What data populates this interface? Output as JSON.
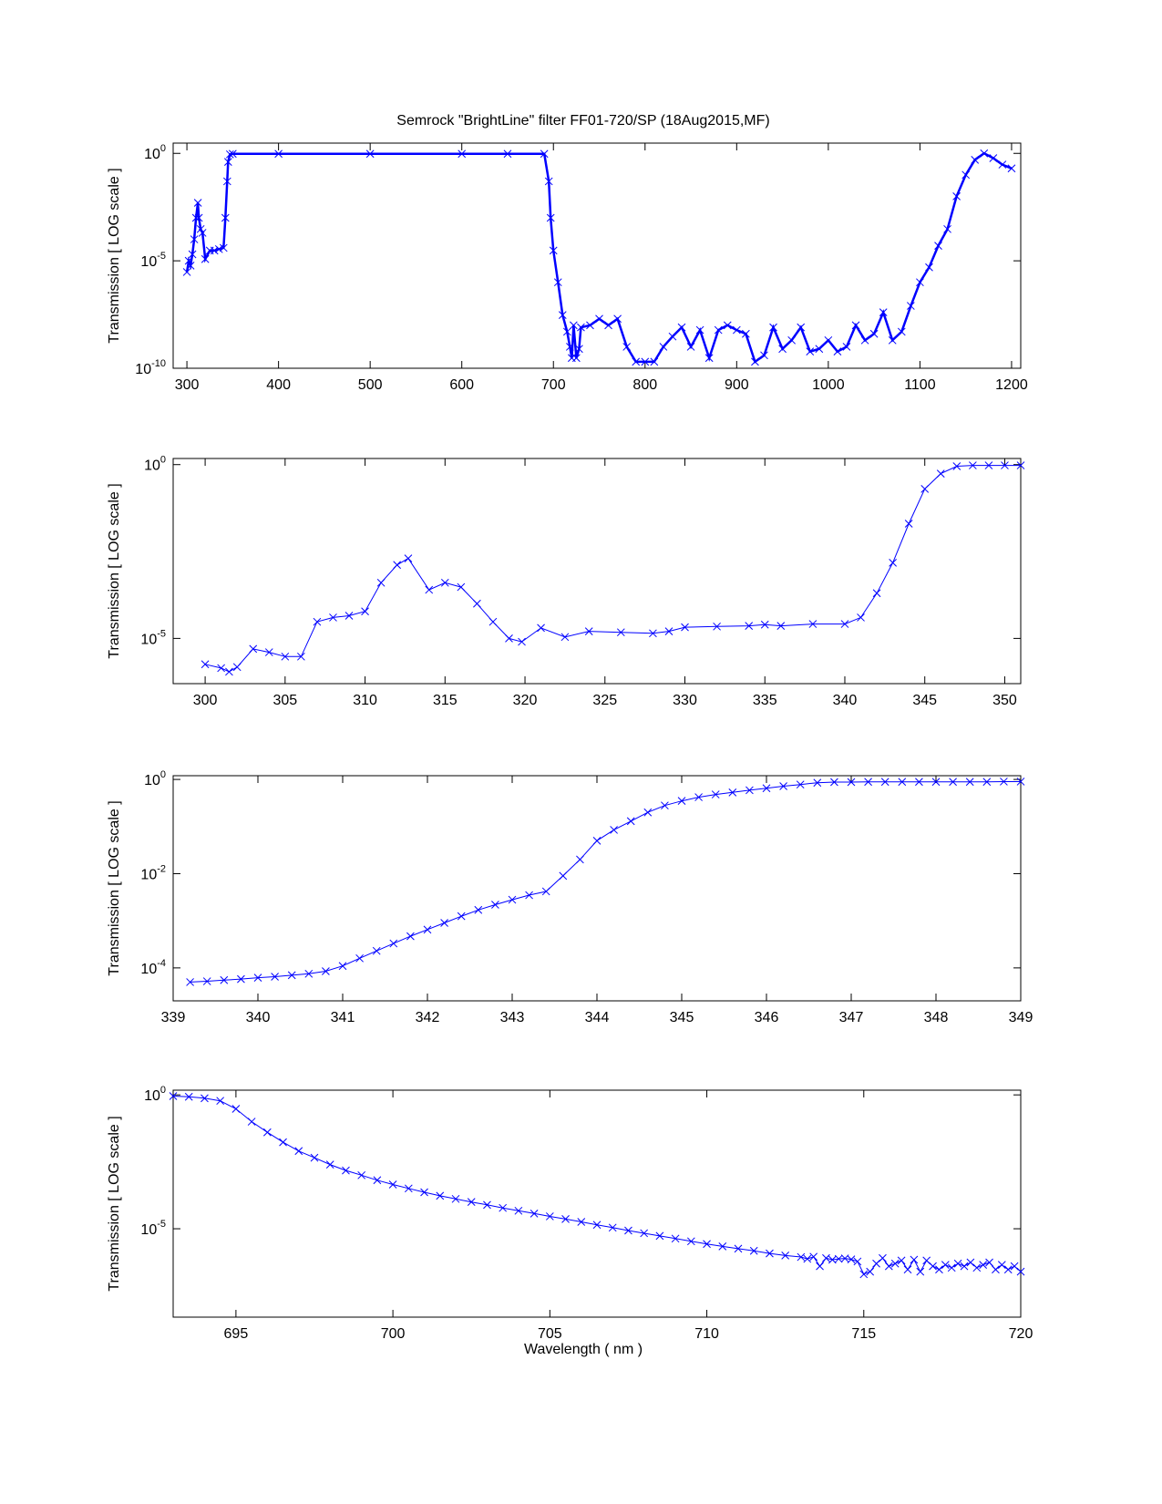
{
  "figure": {
    "title": "Semrock \"BrightLine\" filter  FF01-720/SP  (18Aug2015,MF)",
    "xlabel": "Wavelength  ( nm )",
    "line_color": "#0000ff"
  },
  "chart_data": [
    {
      "type": "line",
      "marker": "x",
      "ylabel": "Transmission  [ LOG scale ]",
      "yscale": "log",
      "xlim": [
        285,
        1210
      ],
      "ylim": [
        1e-10,
        3
      ],
      "xticks": [
        300,
        400,
        500,
        600,
        700,
        800,
        900,
        1000,
        1100,
        1200
      ],
      "yticks": [
        {
          "value": 1e-10,
          "base": "10",
          "exp": "-10"
        },
        {
          "value": 1e-05,
          "base": "10",
          "exp": "-5"
        },
        {
          "value": 1,
          "base": "10",
          "exp": "0"
        }
      ],
      "series": [
        {
          "x": [
            300,
            302,
            304,
            306,
            308,
            310,
            312,
            313,
            315,
            317,
            320,
            325,
            330,
            335,
            340,
            342,
            344,
            345,
            347,
            350,
            400,
            500,
            600,
            650,
            690,
            695,
            697,
            700,
            705,
            710,
            715,
            718,
            720,
            722,
            725,
            728,
            730,
            740,
            750,
            760,
            770,
            780,
            790,
            800,
            810,
            820,
            830,
            840,
            850,
            860,
            870,
            880,
            890,
            900,
            910,
            920,
            930,
            940,
            950,
            960,
            970,
            980,
            990,
            1000,
            1010,
            1020,
            1030,
            1040,
            1050,
            1060,
            1070,
            1080,
            1090,
            1100,
            1110,
            1120,
            1130,
            1140,
            1150,
            1160,
            1170,
            1180,
            1190,
            1200
          ],
          "y": [
            3e-06,
            1e-05,
            6e-06,
            2e-05,
            0.0001,
            0.001,
            0.005,
            0.001,
            0.0003,
            0.0002,
            1.2e-05,
            3e-05,
            3e-05,
            3.5e-05,
            4e-05,
            0.001,
            0.05,
            0.4,
            0.9,
            0.95,
            0.95,
            0.95,
            0.95,
            0.95,
            0.95,
            0.05,
            0.001,
            3e-05,
            1e-06,
            3e-08,
            5e-09,
            1e-09,
            3e-10,
            1e-08,
            3e-10,
            8e-10,
            8e-09,
            1e-08,
            2e-08,
            1e-08,
            2e-08,
            1e-09,
            2e-10,
            2e-10,
            2e-10,
            1e-09,
            3e-09,
            8e-09,
            1e-09,
            6e-09,
            3e-10,
            6e-09,
            1e-08,
            6e-09,
            4e-09,
            2e-10,
            4e-10,
            8e-09,
            8e-10,
            2e-09,
            8e-09,
            6e-10,
            8e-10,
            2e-09,
            6e-10,
            1e-09,
            1e-08,
            2e-09,
            4e-09,
            4e-08,
            2e-09,
            5e-09,
            8e-08,
            1e-06,
            5e-06,
            5e-05,
            0.0003,
            0.01,
            0.1,
            0.5,
            1.0,
            0.6,
            0.3,
            0.2
          ]
        }
      ]
    },
    {
      "type": "line",
      "marker": "x",
      "ylabel": "Transmission  [ LOG scale ]",
      "yscale": "log",
      "xlim": [
        298,
        351
      ],
      "ylim": [
        5e-07,
        1.5
      ],
      "xticks": [
        300,
        305,
        310,
        315,
        320,
        325,
        330,
        335,
        340,
        345,
        350
      ],
      "yticks": [
        {
          "value": 1e-05,
          "base": "10",
          "exp": "-5"
        },
        {
          "value": 1,
          "base": "10",
          "exp": "0"
        }
      ],
      "series": [
        {
          "x": [
            300,
            301,
            301.5,
            302,
            303,
            304,
            305,
            306,
            307,
            308,
            309,
            310,
            311,
            312,
            312.7,
            314,
            315,
            316,
            317,
            318,
            319,
            319.8,
            321,
            322.5,
            324,
            326,
            328,
            329,
            330,
            332,
            334,
            335,
            336,
            338,
            340,
            341,
            342,
            343,
            344,
            345,
            346,
            347,
            348,
            349,
            350,
            351
          ],
          "y": [
            1.8e-06,
            1.4e-06,
            1.1e-06,
            1.5e-06,
            5e-06,
            4e-06,
            3e-06,
            3e-06,
            3e-05,
            4e-05,
            4.5e-05,
            6e-05,
            0.0004,
            0.0013,
            0.002,
            0.00025,
            0.0004,
            0.0003,
            0.0001,
            3e-05,
            1e-05,
            8e-06,
            2e-05,
            1.1e-05,
            1.6e-05,
            1.5e-05,
            1.4e-05,
            1.6e-05,
            2.1e-05,
            2.2e-05,
            2.3e-05,
            2.5e-05,
            2.3e-05,
            2.6e-05,
            2.6e-05,
            4e-05,
            0.0002,
            0.0015,
            0.02,
            0.2,
            0.55,
            0.9,
            0.95,
            0.95,
            0.95,
            0.95
          ]
        }
      ]
    },
    {
      "type": "line",
      "marker": "x",
      "ylabel": "Transmission  [ LOG scale ]",
      "yscale": "log",
      "xlim": [
        339,
        349
      ],
      "ylim": [
        2e-05,
        1.2
      ],
      "xticks": [
        339,
        340,
        341,
        342,
        343,
        344,
        345,
        346,
        347,
        348,
        349
      ],
      "yticks": [
        {
          "value": 0.0001,
          "base": "10",
          "exp": "-4"
        },
        {
          "value": 0.01,
          "base": "10",
          "exp": "-2"
        },
        {
          "value": 1,
          "base": "10",
          "exp": "0"
        }
      ],
      "series": [
        {
          "x": [
            339.2,
            339.4,
            339.6,
            339.8,
            340.0,
            340.2,
            340.4,
            340.6,
            340.8,
            341.0,
            341.2,
            341.4,
            341.6,
            341.8,
            342.0,
            342.2,
            342.4,
            342.6,
            342.8,
            343.0,
            343.2,
            343.4,
            343.6,
            343.8,
            344.0,
            344.2,
            344.4,
            344.6,
            344.8,
            345.0,
            345.2,
            345.4,
            345.6,
            345.8,
            346.0,
            346.2,
            346.4,
            346.6,
            346.8,
            347.0,
            347.2,
            347.4,
            347.6,
            347.8,
            348.0,
            348.2,
            348.4,
            348.6,
            348.8,
            349.0
          ],
          "y": [
            5e-05,
            5.2e-05,
            5.5e-05,
            5.8e-05,
            6.2e-05,
            6.5e-05,
            7e-05,
            7.5e-05,
            8.5e-05,
            0.00011,
            0.00016,
            0.00023,
            0.00033,
            0.00047,
            0.00065,
            0.0009,
            0.00125,
            0.0017,
            0.0022,
            0.0028,
            0.0035,
            0.0042,
            0.009,
            0.02,
            0.05,
            0.085,
            0.13,
            0.2,
            0.28,
            0.35,
            0.42,
            0.48,
            0.53,
            0.59,
            0.65,
            0.72,
            0.78,
            0.85,
            0.88,
            0.88,
            0.89,
            0.89,
            0.89,
            0.89,
            0.89,
            0.89,
            0.89,
            0.89,
            0.9,
            0.9
          ]
        }
      ]
    },
    {
      "type": "line",
      "marker": "x",
      "ylabel": "Transmission  [ LOG scale ]",
      "xlabel": "Wavelength  ( nm )",
      "yscale": "log",
      "xlim": [
        693,
        720
      ],
      "ylim": [
        5e-09,
        1.5
      ],
      "xticks": [
        695,
        700,
        705,
        710,
        715,
        720
      ],
      "yticks": [
        {
          "value": 1e-05,
          "base": "10",
          "exp": "-5"
        },
        {
          "value": 1,
          "base": "10",
          "exp": "0"
        }
      ],
      "series": [
        {
          "x": [
            693.0,
            693.5,
            694.0,
            694.5,
            695.0,
            695.5,
            696.0,
            696.5,
            697.0,
            697.5,
            698.0,
            698.5,
            699.0,
            699.5,
            700.0,
            700.5,
            701.0,
            701.5,
            702.0,
            702.5,
            703.0,
            703.5,
            704.0,
            704.5,
            705.0,
            705.5,
            706.0,
            706.5,
            707.0,
            707.5,
            708.0,
            708.5,
            709.0,
            709.5,
            710.0,
            710.5,
            711.0,
            711.5,
            712.0,
            712.5,
            713.0,
            713.2,
            713.4,
            713.6,
            713.8,
            714.0,
            714.2,
            714.4,
            714.6,
            714.8,
            715.0,
            715.2,
            715.4,
            715.6,
            715.8,
            716.0,
            716.2,
            716.4,
            716.6,
            716.8,
            717.0,
            717.2,
            717.4,
            717.6,
            717.8,
            718.0,
            718.2,
            718.4,
            718.6,
            718.8,
            719.0,
            719.2,
            719.4,
            719.6,
            719.8,
            720.0
          ],
          "y": [
            0.9,
            0.85,
            0.75,
            0.6,
            0.3,
            0.1,
            0.04,
            0.017,
            0.008,
            0.0045,
            0.0025,
            0.0015,
            0.001,
            0.00065,
            0.00045,
            0.00032,
            0.00023,
            0.00017,
            0.00013,
            0.0001,
            7.8e-05,
            6e-05,
            4.7e-05,
            3.7e-05,
            2.9e-05,
            2.3e-05,
            1.8e-05,
            1.4e-05,
            1.1e-05,
            8.6e-06,
            6.8e-06,
            5.4e-06,
            4.3e-06,
            3.4e-06,
            2.7e-06,
            2.2e-06,
            1.8e-06,
            1.5e-06,
            1.2e-06,
            1e-06,
            8.8e-07,
            7.5e-07,
            9e-07,
            4e-07,
            8e-07,
            7e-07,
            7.5e-07,
            7.8e-07,
            7.2e-07,
            6e-07,
            2e-07,
            2.5e-07,
            5e-07,
            8e-07,
            4e-07,
            5e-07,
            6.5e-07,
            3e-07,
            7e-07,
            2.5e-07,
            6.5e-07,
            4e-07,
            3e-07,
            4.5e-07,
            3.5e-07,
            5e-07,
            4e-07,
            5.5e-07,
            3.5e-07,
            4.5e-07,
            5.5e-07,
            3e-07,
            4.5e-07,
            3e-07,
            4e-07,
            2.5e-07
          ]
        }
      ]
    }
  ]
}
